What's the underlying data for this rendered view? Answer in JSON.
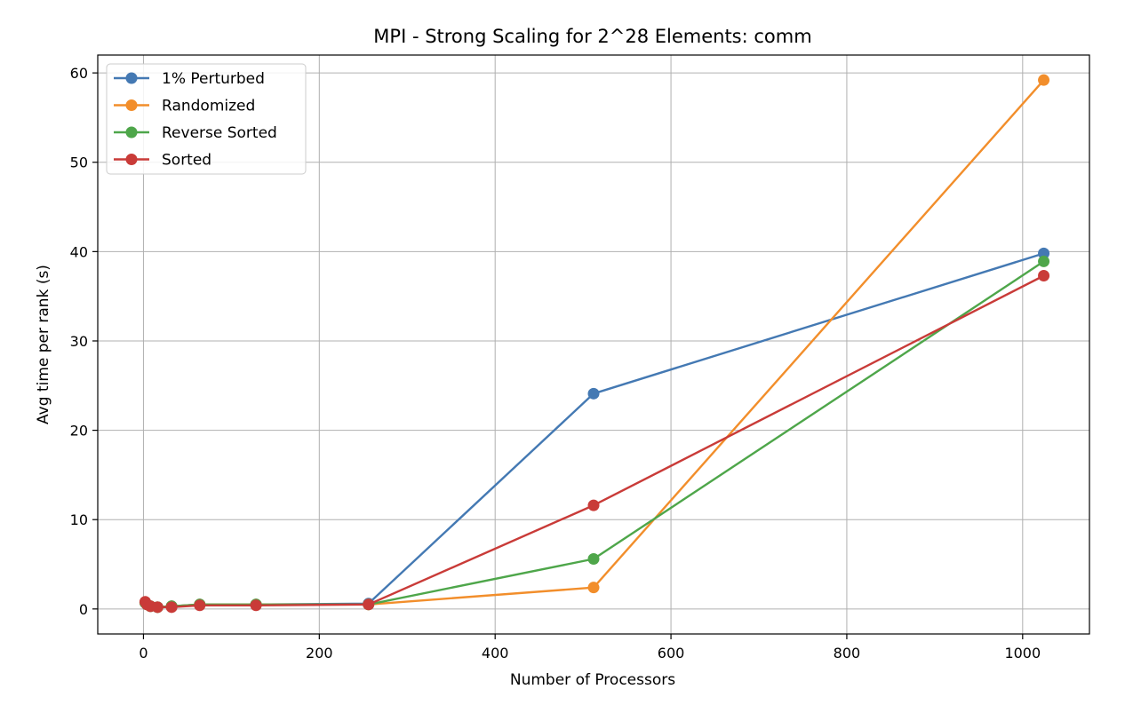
{
  "chart_data": {
    "type": "line",
    "title": "MPI - Strong Scaling for 2^28 Elements: comm",
    "xlabel": "Number of Processors",
    "ylabel": "Avg time per rank (s)",
    "xlim": [
      -52,
      1076
    ],
    "ylim": [
      -2.8,
      62
    ],
    "xticks": [
      0,
      200,
      400,
      600,
      800,
      1000
    ],
    "yticks": [
      0,
      10,
      20,
      30,
      40,
      50,
      60
    ],
    "grid": true,
    "legend_position": "top-left",
    "series": [
      {
        "name": "1% Perturbed",
        "color": "#4479b3",
        "x": [
          2,
          4,
          8,
          16,
          32,
          64,
          128,
          256,
          512,
          1024
        ],
        "y": [
          0.7,
          0.5,
          0.3,
          0.2,
          0.3,
          0.5,
          0.5,
          0.6,
          24.1,
          39.8
        ]
      },
      {
        "name": "Randomized",
        "color": "#f28e2b",
        "x": [
          2,
          4,
          8,
          16,
          32,
          64,
          128,
          256,
          512,
          1024
        ],
        "y": [
          0.7,
          0.5,
          0.3,
          0.2,
          0.3,
          0.5,
          0.5,
          0.5,
          2.4,
          59.2
        ]
      },
      {
        "name": "Reverse Sorted",
        "color": "#4ea64a",
        "x": [
          2,
          4,
          8,
          16,
          32,
          64,
          128,
          256,
          512,
          1024
        ],
        "y": [
          0.7,
          0.5,
          0.3,
          0.2,
          0.3,
          0.5,
          0.5,
          0.5,
          5.6,
          38.9
        ]
      },
      {
        "name": "Sorted",
        "color": "#c93b38",
        "x": [
          2,
          4,
          8,
          16,
          32,
          64,
          128,
          256,
          512,
          1024
        ],
        "y": [
          0.8,
          0.5,
          0.3,
          0.2,
          0.2,
          0.4,
          0.4,
          0.5,
          11.6,
          37.3
        ]
      }
    ]
  }
}
